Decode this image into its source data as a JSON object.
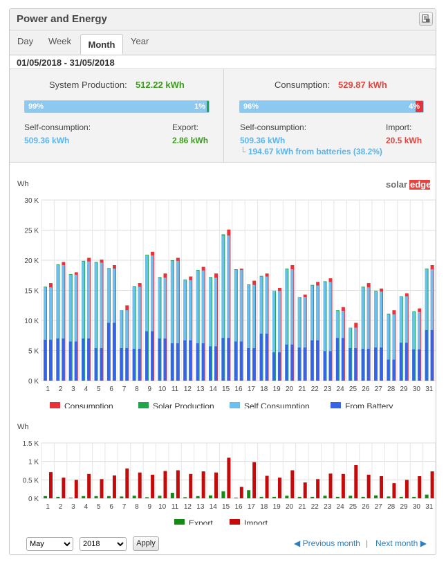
{
  "header": {
    "title": "Power and Energy",
    "export_icon": "document-export-icon"
  },
  "tabs": [
    {
      "label": "Day",
      "active": false
    },
    {
      "label": "Week",
      "active": false
    },
    {
      "label": "Month",
      "active": true
    },
    {
      "label": "Year",
      "active": false
    }
  ],
  "date_range": "01/05/2018 - 31/05/2018",
  "production": {
    "title": "System Production:",
    "value": "512.22 kWh",
    "self_pct": "99%",
    "export_pct": "1%",
    "self_fraction": 0.99,
    "self_label": "Self-consumption:",
    "self_value": "509.36 kWh",
    "export_label": "Export:",
    "export_value": "2.86 kWh"
  },
  "consumption": {
    "title": "Consumption:",
    "value": "529.87 kWh",
    "self_pct": "96%",
    "import_pct": "4%",
    "self_fraction": 0.96,
    "self_label": "Self-consumption:",
    "self_value": "509.36 kWh",
    "battery_note": "└ 194.67 kWh from batteries (38.2%)",
    "import_label": "Import:",
    "import_value": "20.5 kWh"
  },
  "brand": {
    "part1": "solar",
    "part2": "edge"
  },
  "colors": {
    "consumption": "#e8323a",
    "solar": "#20a64a",
    "self": "#6cc0ef",
    "battery": "#3465e8",
    "export": "#138a13",
    "import": "#c30b0b",
    "green_text": "#3c9c1c",
    "red_text": "#e0453f",
    "blue_text": "#5ab4ec",
    "link": "#2a7fc0"
  },
  "chart_data": [
    {
      "type": "bar",
      "ylabel": "Wh",
      "ylim": [
        0,
        30000
      ],
      "yticks": [
        "0 K",
        "5 K",
        "10 K",
        "15 K",
        "20 K",
        "25 K",
        "30 K"
      ],
      "grid": true,
      "legend_position": "bottom",
      "categories": [
        "1",
        "2",
        "3",
        "4",
        "5",
        "6",
        "7",
        "8",
        "9",
        "10",
        "11",
        "12",
        "13",
        "14",
        "15",
        "16",
        "17",
        "18",
        "19",
        "20",
        "21",
        "22",
        "23",
        "24",
        "25",
        "26",
        "27",
        "28",
        "29",
        "30",
        "31"
      ],
      "series": [
        {
          "name": "Consumption",
          "values": [
            16200,
            19700,
            18000,
            20400,
            20100,
            19200,
            12500,
            16200,
            21400,
            17800,
            20400,
            17300,
            18900,
            17800,
            25100,
            18600,
            16600,
            17800,
            15400,
            19200,
            14300,
            16400,
            17000,
            12200,
            9600,
            16200,
            15300,
            11700,
            14500,
            12000,
            19200
          ]
        },
        {
          "name": "Solar Production",
          "values": [
            15600,
            19300,
            17700,
            19900,
            19700,
            18700,
            11700,
            15700,
            20900,
            17200,
            20000,
            16800,
            18400,
            17200,
            24300,
            18500,
            16000,
            17400,
            14900,
            18600,
            13900,
            15900,
            16500,
            11700,
            8800,
            15600,
            14900,
            11100,
            14000,
            11500,
            18600
          ]
        },
        {
          "name": "Self Consumption",
          "values": [
            15500,
            19200,
            17600,
            19800,
            19600,
            18600,
            11700,
            15600,
            20800,
            17100,
            19900,
            16700,
            18300,
            17100,
            24100,
            18400,
            15900,
            17300,
            14900,
            18500,
            13900,
            15800,
            16400,
            11600,
            8800,
            15500,
            14800,
            11000,
            14000,
            11400,
            18500
          ]
        },
        {
          "name": "From Battery",
          "values": [
            6800,
            7000,
            6500,
            7000,
            5400,
            9600,
            5400,
            5300,
            8200,
            7000,
            6200,
            6700,
            6200,
            5700,
            7100,
            6500,
            5400,
            7800,
            4700,
            6000,
            5500,
            6700,
            4900,
            7100,
            5400,
            5300,
            5500,
            3500,
            6300,
            5200,
            8400
          ]
        }
      ]
    },
    {
      "type": "bar",
      "ylabel": "Wh",
      "ylim": [
        0,
        1500
      ],
      "yticks": [
        "0 K",
        "0.5 K",
        "1 K",
        "1.5 K"
      ],
      "grid": true,
      "legend_position": "bottom",
      "categories": [
        "1",
        "2",
        "3",
        "4",
        "5",
        "6",
        "7",
        "8",
        "9",
        "10",
        "11",
        "12",
        "13",
        "14",
        "15",
        "16",
        "17",
        "18",
        "19",
        "20",
        "21",
        "22",
        "23",
        "24",
        "25",
        "26",
        "27",
        "28",
        "29",
        "30",
        "31"
      ],
      "series": [
        {
          "name": "Export",
          "values": [
            60,
            40,
            20,
            60,
            60,
            60,
            50,
            70,
            30,
            70,
            150,
            30,
            60,
            80,
            190,
            20,
            220,
            40,
            40,
            70,
            40,
            40,
            70,
            40,
            70,
            40,
            80,
            50,
            40,
            40,
            100
          ]
        },
        {
          "name": "Import",
          "values": [
            710,
            560,
            500,
            660,
            520,
            620,
            810,
            700,
            640,
            740,
            760,
            660,
            730,
            700,
            1100,
            310,
            980,
            610,
            560,
            760,
            430,
            520,
            670,
            660,
            900,
            640,
            600,
            410,
            500,
            600,
            730
          ]
        }
      ]
    }
  ],
  "footer": {
    "month": "May",
    "year": "2018",
    "apply": "Apply",
    "prev": "Previous month",
    "divider": "|",
    "next": "Next month"
  }
}
